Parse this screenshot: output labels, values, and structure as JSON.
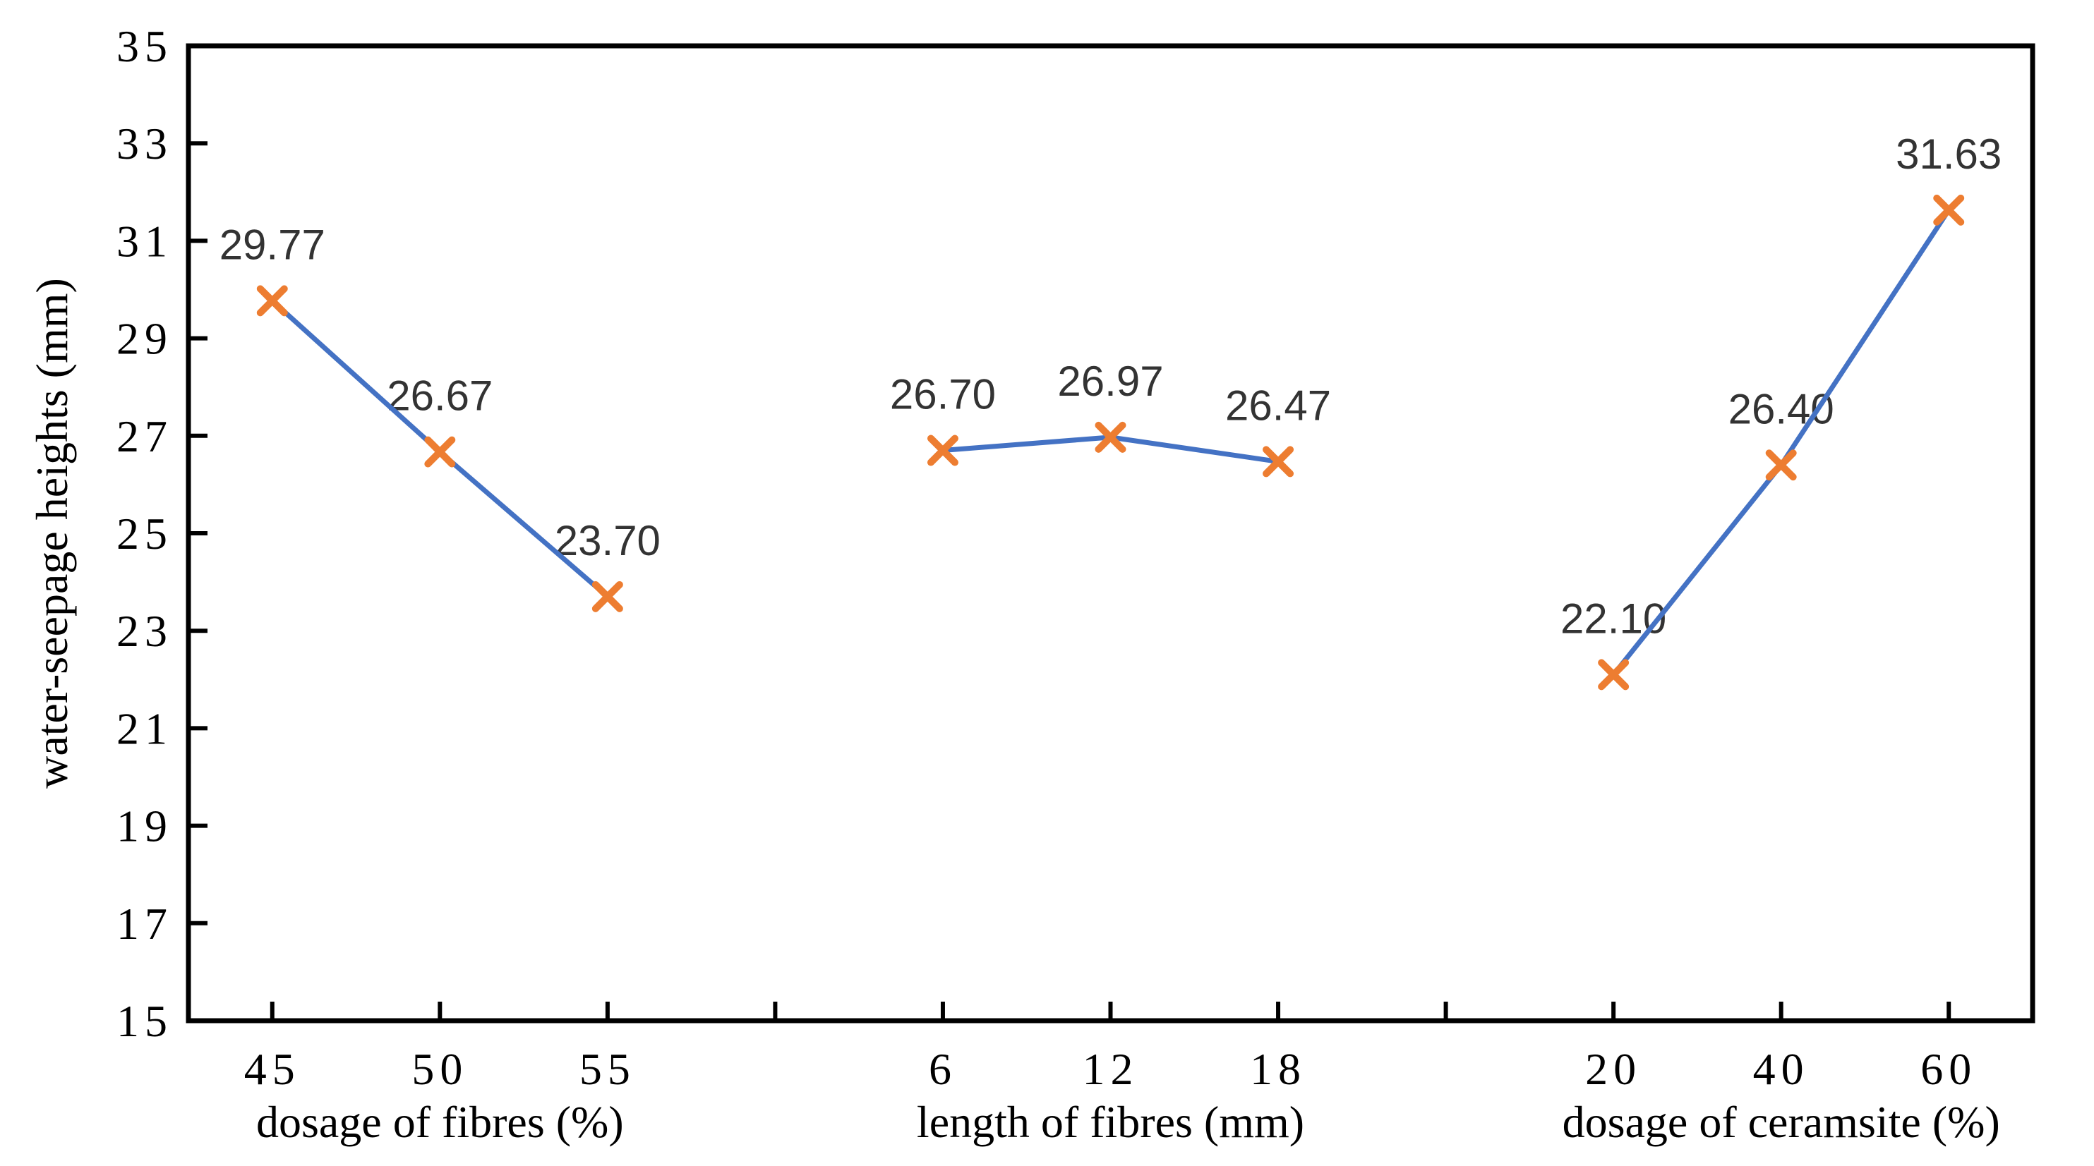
{
  "chart_data": {
    "type": "line",
    "title": "",
    "ylabel": "water-seepage heights (mm)",
    "ylim": [
      15,
      35
    ],
    "ytick_step": 2,
    "ytick_labels": [
      "15",
      "17",
      "19",
      "21",
      "23",
      "25",
      "27",
      "29",
      "31",
      "33",
      "35"
    ],
    "grid": false,
    "legend_position": "none",
    "num_slots": 11,
    "line_color": "#4472C4",
    "marker_color": "#ED7D31",
    "marker_style": "x",
    "axis_color": "#000000",
    "background_color": "#ffffff",
    "data_label_color": "#333333",
    "series": [
      {
        "name": "dosage of fibres",
        "axis_title": "dosage of fibres (%)",
        "slots": [
          0,
          1,
          2
        ],
        "categories": [
          "45",
          "50",
          "55"
        ],
        "values": [
          29.77,
          26.67,
          23.7
        ],
        "data_labels": [
          "29.77",
          "26.67",
          "23.70"
        ]
      },
      {
        "name": "length of fibres",
        "axis_title": "length of fibres (mm)",
        "slots": [
          4,
          5,
          6
        ],
        "categories": [
          "6",
          "12",
          "18"
        ],
        "values": [
          26.7,
          26.97,
          26.47
        ],
        "data_labels": [
          "26.70",
          "26.97",
          "26.47"
        ]
      },
      {
        "name": "dosage of ceramsite",
        "axis_title": "dosage of ceramsite (%)",
        "slots": [
          8,
          9,
          10
        ],
        "categories": [
          "20",
          "40",
          "60"
        ],
        "values": [
          22.1,
          26.4,
          31.63
        ],
        "data_labels": [
          "22.10",
          "26.40",
          "31.63"
        ]
      }
    ]
  }
}
